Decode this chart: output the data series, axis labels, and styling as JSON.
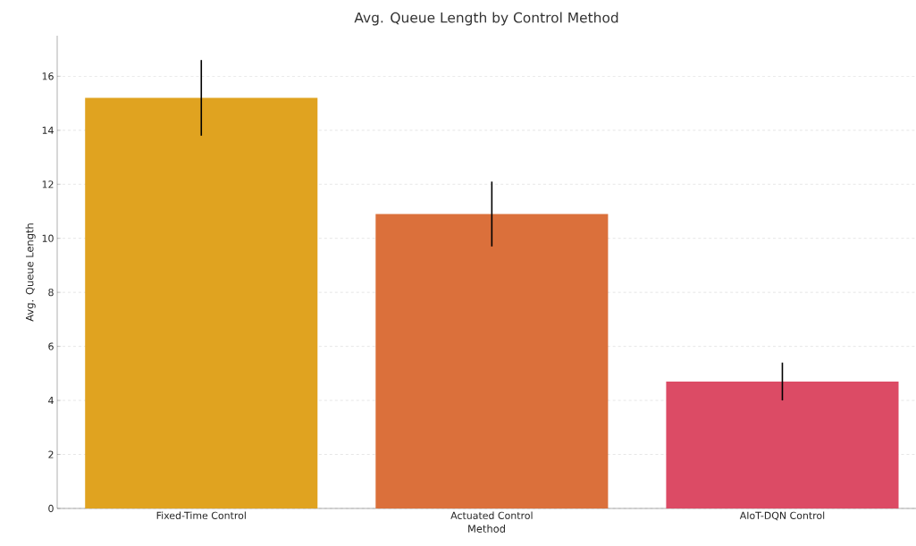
{
  "chart_data": {
    "type": "bar",
    "title": "Avg. Queue Length by Control Method",
    "xlabel": "Method",
    "ylabel": "Avg. Queue Length",
    "categories": [
      "Fixed-Time Control",
      "Actuated Control",
      "AIoT-DQN Control"
    ],
    "values": [
      15.2,
      10.9,
      4.7
    ],
    "errors": [
      1.4,
      1.2,
      0.7
    ],
    "colors": [
      "#e0a320",
      "#db703b",
      "#dc4b65"
    ],
    "ylim": [
      0,
      17.5
    ],
    "yticks": [
      0,
      2,
      4,
      6,
      8,
      10,
      12,
      14,
      16
    ],
    "grid": "y"
  }
}
